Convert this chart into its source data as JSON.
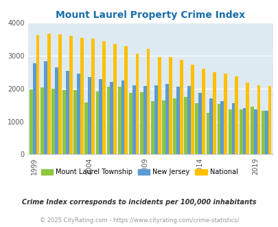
{
  "title": "Mount Laurel Property Crime Index",
  "years": [
    1999,
    2000,
    2001,
    2002,
    2003,
    2004,
    2005,
    2006,
    2007,
    2008,
    2009,
    2010,
    2011,
    2012,
    2013,
    2014,
    2015,
    2016,
    2017,
    2018,
    2019,
    2020
  ],
  "mount_laurel": [
    1980,
    2040,
    2000,
    1960,
    1950,
    1580,
    1900,
    2060,
    2060,
    1870,
    1880,
    1620,
    1640,
    1700,
    1750,
    1560,
    1270,
    1540,
    1370,
    1370,
    1450,
    1330
  ],
  "new_jersey": [
    2770,
    2840,
    2650,
    2540,
    2450,
    2350,
    2290,
    2200,
    2250,
    2090,
    2070,
    2090,
    2150,
    2050,
    2070,
    1870,
    1710,
    1620,
    1550,
    1400,
    1360,
    1330
  ],
  "national": [
    3620,
    3670,
    3640,
    3610,
    3540,
    3510,
    3430,
    3360,
    3290,
    3050,
    3210,
    2960,
    2950,
    2880,
    2730,
    2600,
    2500,
    2460,
    2360,
    2190,
    2100,
    2080
  ],
  "mount_laurel_color": "#8dc63f",
  "new_jersey_color": "#5b9bd5",
  "national_color": "#ffc000",
  "plot_bg": "#deeaf1",
  "ylim": [
    0,
    4000
  ],
  "yticks": [
    0,
    1000,
    2000,
    3000,
    4000
  ],
  "xlabel_years": [
    1999,
    2004,
    2009,
    2014,
    2019
  ],
  "footnote1": "Crime Index corresponds to incidents per 100,000 inhabitants",
  "footnote2": "© 2025 CityRating.com - https://www.cityrating.com/crime-statistics/",
  "legend_labels": [
    "Mount Laurel Township",
    "New Jersey",
    "National"
  ]
}
